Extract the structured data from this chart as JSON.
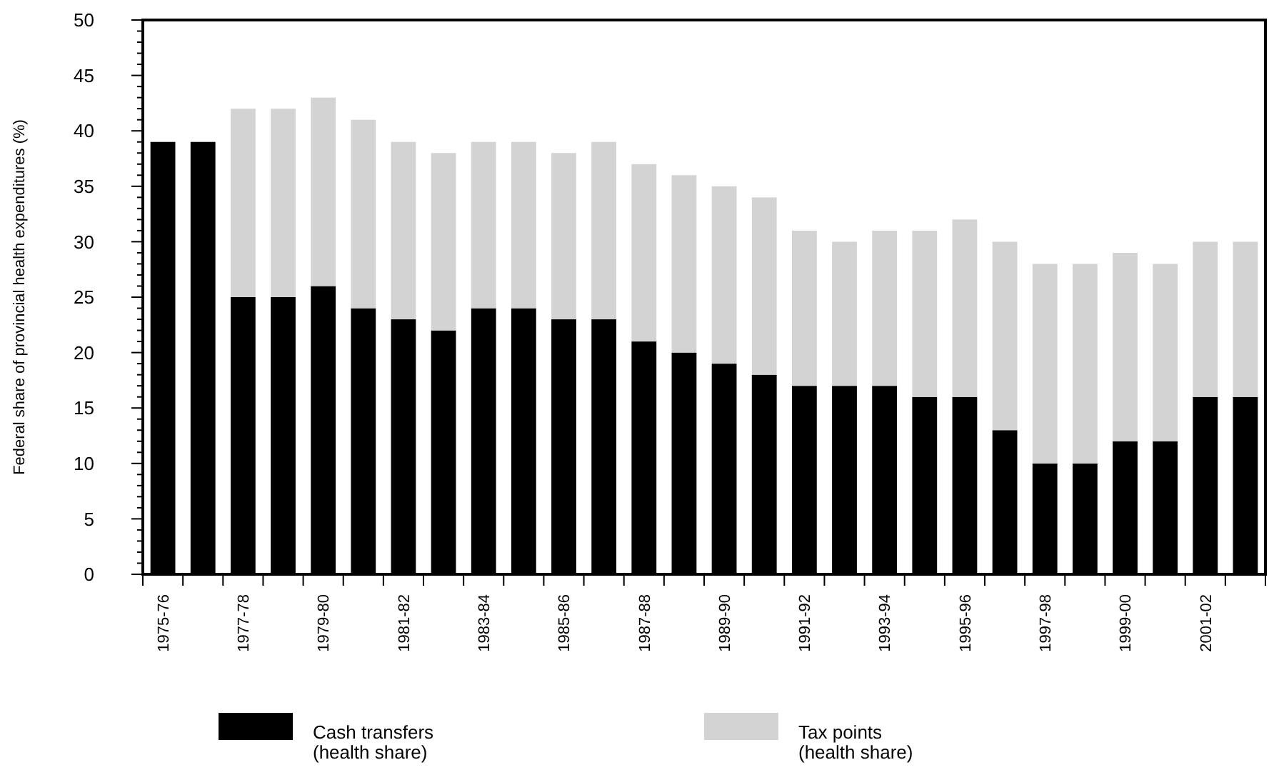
{
  "chart_data": {
    "type": "bar",
    "stacked": true,
    "ylabel": "Federal share of provincial health expenditures (%)",
    "categories": [
      "1975-76",
      null,
      "1977-78",
      null,
      "1979-80",
      null,
      "1981-82",
      null,
      "1983-84",
      null,
      "1985-86",
      null,
      "1987-88",
      null,
      "1989-90",
      null,
      "1991-92",
      null,
      "1993-94",
      null,
      "1995-96",
      null,
      "1997-98",
      null,
      "1999-00",
      null,
      "2001-02",
      null
    ],
    "series": [
      {
        "name": "Cash transfers\n(health share)",
        "color": "#000000",
        "values": [
          39,
          39,
          25,
          25,
          26,
          24,
          23,
          22,
          24,
          24,
          23,
          23,
          21,
          20,
          19,
          18,
          17,
          17,
          17,
          16,
          16,
          13,
          10,
          10,
          12,
          12,
          16,
          16
        ]
      },
      {
        "name": "Tax points\n(health share)",
        "color": "#d3d3d3",
        "values": [
          0,
          0,
          17,
          17,
          17,
          17,
          16,
          16,
          15,
          15,
          15,
          16,
          16,
          16,
          16,
          16,
          14,
          13,
          14,
          15,
          16,
          17,
          18,
          18,
          17,
          16,
          14,
          14
        ]
      }
    ],
    "ylim": [
      0,
      50
    ],
    "yticks": [
      0,
      {
        "value": 1,
        "label": null
      },
      {
        "value": 2,
        "label": null
      },
      {
        "value": 3,
        "label": null
      },
      {
        "value": 4,
        "label": null
      },
      5,
      {
        "value": 6,
        "label": null
      },
      {
        "value": 7,
        "label": null
      },
      {
        "value": 8,
        "label": null
      },
      {
        "value": 9,
        "label": null
      },
      10,
      {
        "value": 11,
        "label": null
      },
      {
        "value": 12,
        "label": null
      },
      {
        "value": 13,
        "label": null
      },
      {
        "value": 14,
        "label": null
      },
      15,
      {
        "value": 16,
        "label": null
      },
      {
        "value": 17,
        "label": null
      },
      {
        "value": 18,
        "label": null
      },
      {
        "value": 19,
        "label": null
      },
      20,
      {
        "value": 21,
        "label": null
      },
      {
        "value": 22,
        "label": null
      },
      {
        "value": 23,
        "label": null
      },
      {
        "value": 24,
        "label": null
      },
      25,
      {
        "value": 26,
        "label": null
      },
      {
        "value": 27,
        "label": null
      },
      {
        "value": 28,
        "label": null
      },
      {
        "value": 29,
        "label": null
      },
      30,
      {
        "value": 31,
        "label": null
      },
      {
        "value": 32,
        "label": null
      },
      {
        "value": 33,
        "label": null
      },
      {
        "value": 34,
        "label": null
      },
      35,
      {
        "value": 36,
        "label": null
      },
      {
        "value": 37,
        "label": null
      },
      {
        "value": 38,
        "label": null
      },
      {
        "value": 39,
        "label": null
      },
      40,
      {
        "value": 41,
        "label": null
      },
      {
        "value": 42,
        "label": null
      },
      {
        "value": 43,
        "label": null
      },
      {
        "value": 44,
        "label": null
      },
      45,
      {
        "value": 46,
        "label": null
      },
      {
        "value": 47,
        "label": null
      },
      {
        "value": 48,
        "label": null
      },
      {
        "value": 49,
        "label": null
      },
      50
    ],
    "grid": false,
    "legend": "bottom"
  }
}
